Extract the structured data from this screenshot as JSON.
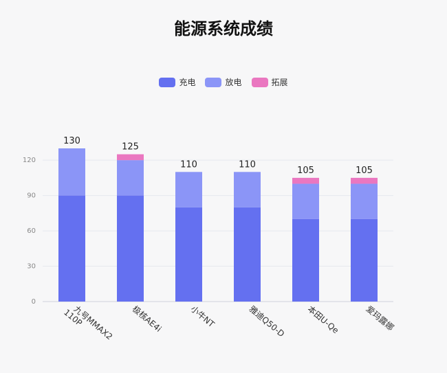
{
  "chart_data": {
    "type": "bar",
    "stacked": true,
    "title": "能源系统成绩",
    "xlabel": "",
    "ylabel": "",
    "ylim": [
      0,
      130
    ],
    "yticks": [
      0,
      30,
      60,
      90,
      120
    ],
    "grid": true,
    "legend_position": "top-center",
    "categories": [
      [
        "九号MMAX2",
        "110P"
      ],
      [
        "极核AE4i"
      ],
      [
        "小牛NT"
      ],
      [
        "雅迪Q50-D"
      ],
      [
        "本田U-Qe"
      ],
      [
        "爱玛露娜"
      ]
    ],
    "series": [
      {
        "name": "充电",
        "color": "#6470f0",
        "values": [
          90,
          90,
          80,
          80,
          70,
          70
        ]
      },
      {
        "name": "放电",
        "color": "#8b95f7",
        "values": [
          40,
          30,
          30,
          30,
          30,
          30
        ]
      },
      {
        "name": "拓展",
        "color": "#ea77c0",
        "values": [
          0,
          5,
          0,
          0,
          5,
          5
        ]
      }
    ],
    "totals": [
      130,
      125,
      110,
      110,
      105,
      105
    ]
  }
}
